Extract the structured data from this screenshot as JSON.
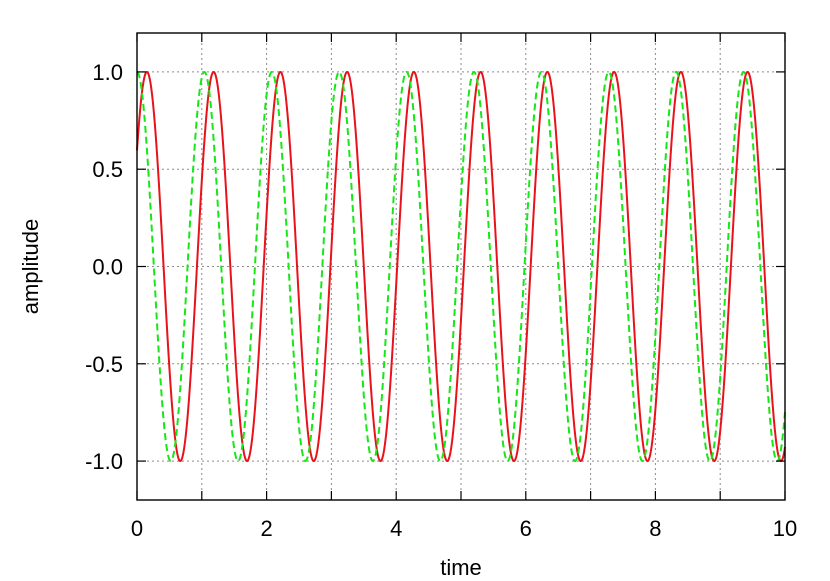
{
  "chart_data": {
    "type": "line",
    "title": "",
    "xlabel": "time",
    "ylabel": "amplitude",
    "xlim": [
      0,
      10
    ],
    "ylim": [
      -1.2,
      1.2
    ],
    "grid": true,
    "legend": "none",
    "x_ticks": [
      {
        "value": 0,
        "label": "0"
      },
      {
        "value": 2,
        "label": "2"
      },
      {
        "value": 4,
        "label": "4"
      },
      {
        "value": 6,
        "label": "6"
      },
      {
        "value": 8,
        "label": "8"
      },
      {
        "value": 10,
        "label": "10"
      }
    ],
    "x_minor_ticks": [
      1,
      3,
      5,
      7,
      9
    ],
    "y_ticks": [
      {
        "value": 1.0,
        "label": "1.0"
      },
      {
        "value": 0.5,
        "label": "0.5"
      },
      {
        "value": 0.0,
        "label": "0.0"
      },
      {
        "value": -0.5,
        "label": "-0.5"
      },
      {
        "value": -1.0,
        "label": "-1.0"
      }
    ],
    "series": [
      {
        "style": "solid",
        "color": "#e8131a",
        "function": "sin",
        "amplitude": 1.0,
        "period": 1.03,
        "phase": 0.64
      },
      {
        "style": "dashed",
        "color": "#17e617",
        "function": "cos",
        "amplitude": 1.0,
        "period": 1.04,
        "phase": 0.0
      }
    ]
  }
}
